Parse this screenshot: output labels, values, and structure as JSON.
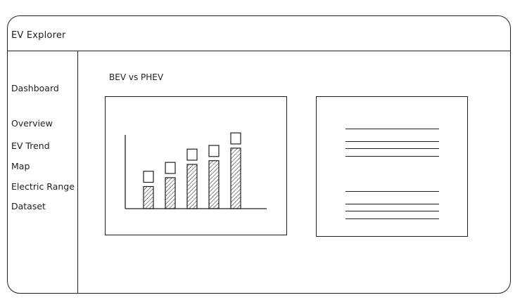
{
  "app": {
    "title": "EV Explorer"
  },
  "sidebar": {
    "heading": "Dashboard",
    "items": [
      {
        "label": "Overview"
      },
      {
        "label": "EV Trend"
      },
      {
        "label": "Map"
      },
      {
        "label": "Electric Range"
      },
      {
        "label": "Dataset"
      }
    ]
  },
  "main": {
    "section_title": "BEV vs PHEV"
  },
  "chart_data": {
    "type": "bar",
    "title": "",
    "xlabel": "",
    "ylabel": "",
    "categories": [
      "",
      "",
      "",
      "",
      ""
    ],
    "ylim": [
      0,
      100
    ],
    "series": [
      {
        "values": [
          30,
          42,
          60,
          65,
          82
        ]
      },
      {
        "values": [
          15,
          15,
          15,
          15,
          15
        ]
      }
    ],
    "stacked": true,
    "grid": false
  },
  "text_panel": {
    "line_groups": [
      4,
      4
    ]
  }
}
